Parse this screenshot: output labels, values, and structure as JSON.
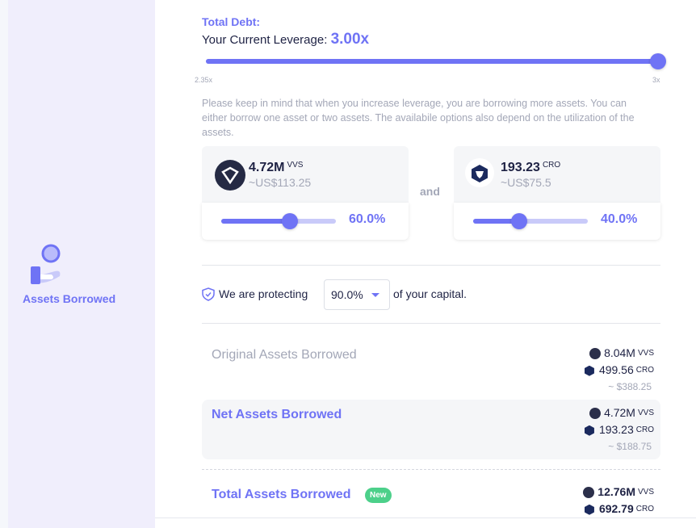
{
  "sidebar": {
    "label": "Assets Borrowed",
    "icon": "hand-coin-icon"
  },
  "header": {
    "title": "Total Debt:",
    "leverage_label": "Your Current Leverage:",
    "leverage_value": "3.00x"
  },
  "leverage_slider": {
    "min_label": "2.35x",
    "max_label": "3x",
    "min": 2.35,
    "max": 3,
    "value": 3.0
  },
  "notice": "Please keep in mind that when you increase leverage, you are borrowing more assets. You can either borrow one asset or two assets. The availabile options also depend on the utilization of the assets.",
  "assets": [
    {
      "amount": "4.72M",
      "symbol": "VVS",
      "usd": "~US$113.25",
      "percent": "60.0%",
      "value": 60,
      "icon": "vvs-token-icon"
    },
    {
      "amount": "193.23",
      "symbol": "CRO",
      "usd": "~US$75.5",
      "percent": "40.0%",
      "value": 40,
      "icon": "cro-token-icon"
    }
  ],
  "and_label": "and",
  "protect": {
    "prefix": "We are protecting",
    "value": "90.0%",
    "suffix": "of your capital."
  },
  "rows": [
    {
      "label": "Original Assets Borrowed",
      "vvs": "8.04M",
      "cro": "499.56",
      "usd": "~ $388.25"
    },
    {
      "label": "Net Assets Borrowed",
      "vvs": "4.72M",
      "cro": "193.23",
      "usd": "~ $188.75"
    },
    {
      "label": "Total Assets Borrowed",
      "badge": "New",
      "vvs": "12.76M",
      "cro": "692.79"
    }
  ],
  "symbols": {
    "vvs": "VVS",
    "cro": "CRO"
  },
  "colors": {
    "accent": "#6f73f5",
    "badge": "#4cd08a",
    "sidebar": "#f0eefc"
  }
}
